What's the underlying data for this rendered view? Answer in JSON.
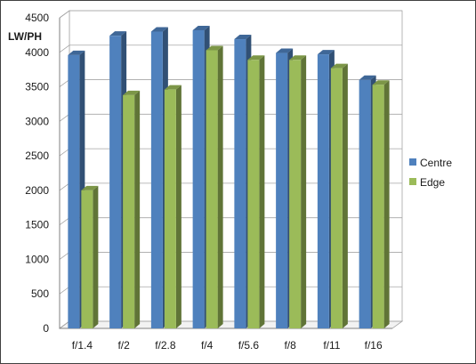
{
  "chart_data": {
    "type": "bar",
    "title": "",
    "xlabel": "",
    "ylabel": "LW/PH",
    "categories": [
      "f/1.4",
      "f/2",
      "f/2.8",
      "f/4",
      "f/5.6",
      "f/8",
      "f/11",
      "f/16"
    ],
    "series": [
      {
        "name": "Centre",
        "color": "#4f81bd",
        "values": [
          3960,
          4240,
          4300,
          4320,
          4190,
          3990,
          3970,
          3600
        ]
      },
      {
        "name": "Edge",
        "color": "#9bbb59",
        "values": [
          2000,
          3380,
          3460,
          4030,
          3890,
          3890,
          3770,
          3530
        ]
      }
    ],
    "ylim": [
      0,
      4500
    ],
    "yticks": [
      0,
      500,
      1000,
      1500,
      2000,
      2500,
      3000,
      3500,
      4000,
      4500
    ],
    "grid": true,
    "legend_position": "right"
  }
}
